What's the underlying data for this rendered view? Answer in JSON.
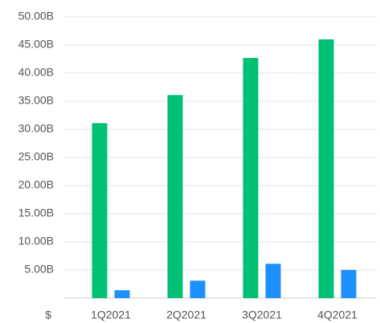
{
  "chart_data": {
    "type": "bar",
    "categories": [
      "1Q2021",
      "2Q2021",
      "3Q2021",
      "4Q2021"
    ],
    "series": [
      {
        "color": "#00c073",
        "values": [
          31.1,
          36.1,
          42.7,
          46.0
        ]
      },
      {
        "color": "#1e90ff",
        "values": [
          1.4,
          3.1,
          6.1,
          5.0
        ]
      }
    ],
    "ylabel": "$",
    "ylim": [
      0,
      50
    ],
    "yticks": [
      {
        "value": 5,
        "label": "5.00B"
      },
      {
        "value": 10,
        "label": "10.00B"
      },
      {
        "value": 15,
        "label": "15.00B"
      },
      {
        "value": 20,
        "label": "20.00B"
      },
      {
        "value": 25,
        "label": "25.00B"
      },
      {
        "value": 30,
        "label": "30.00B"
      },
      {
        "value": 35,
        "label": "35.00B"
      },
      {
        "value": 40,
        "label": "40.00B"
      },
      {
        "value": 45,
        "label": "45.00B"
      },
      {
        "value": 50,
        "label": "50.00B"
      }
    ],
    "grid": true
  }
}
